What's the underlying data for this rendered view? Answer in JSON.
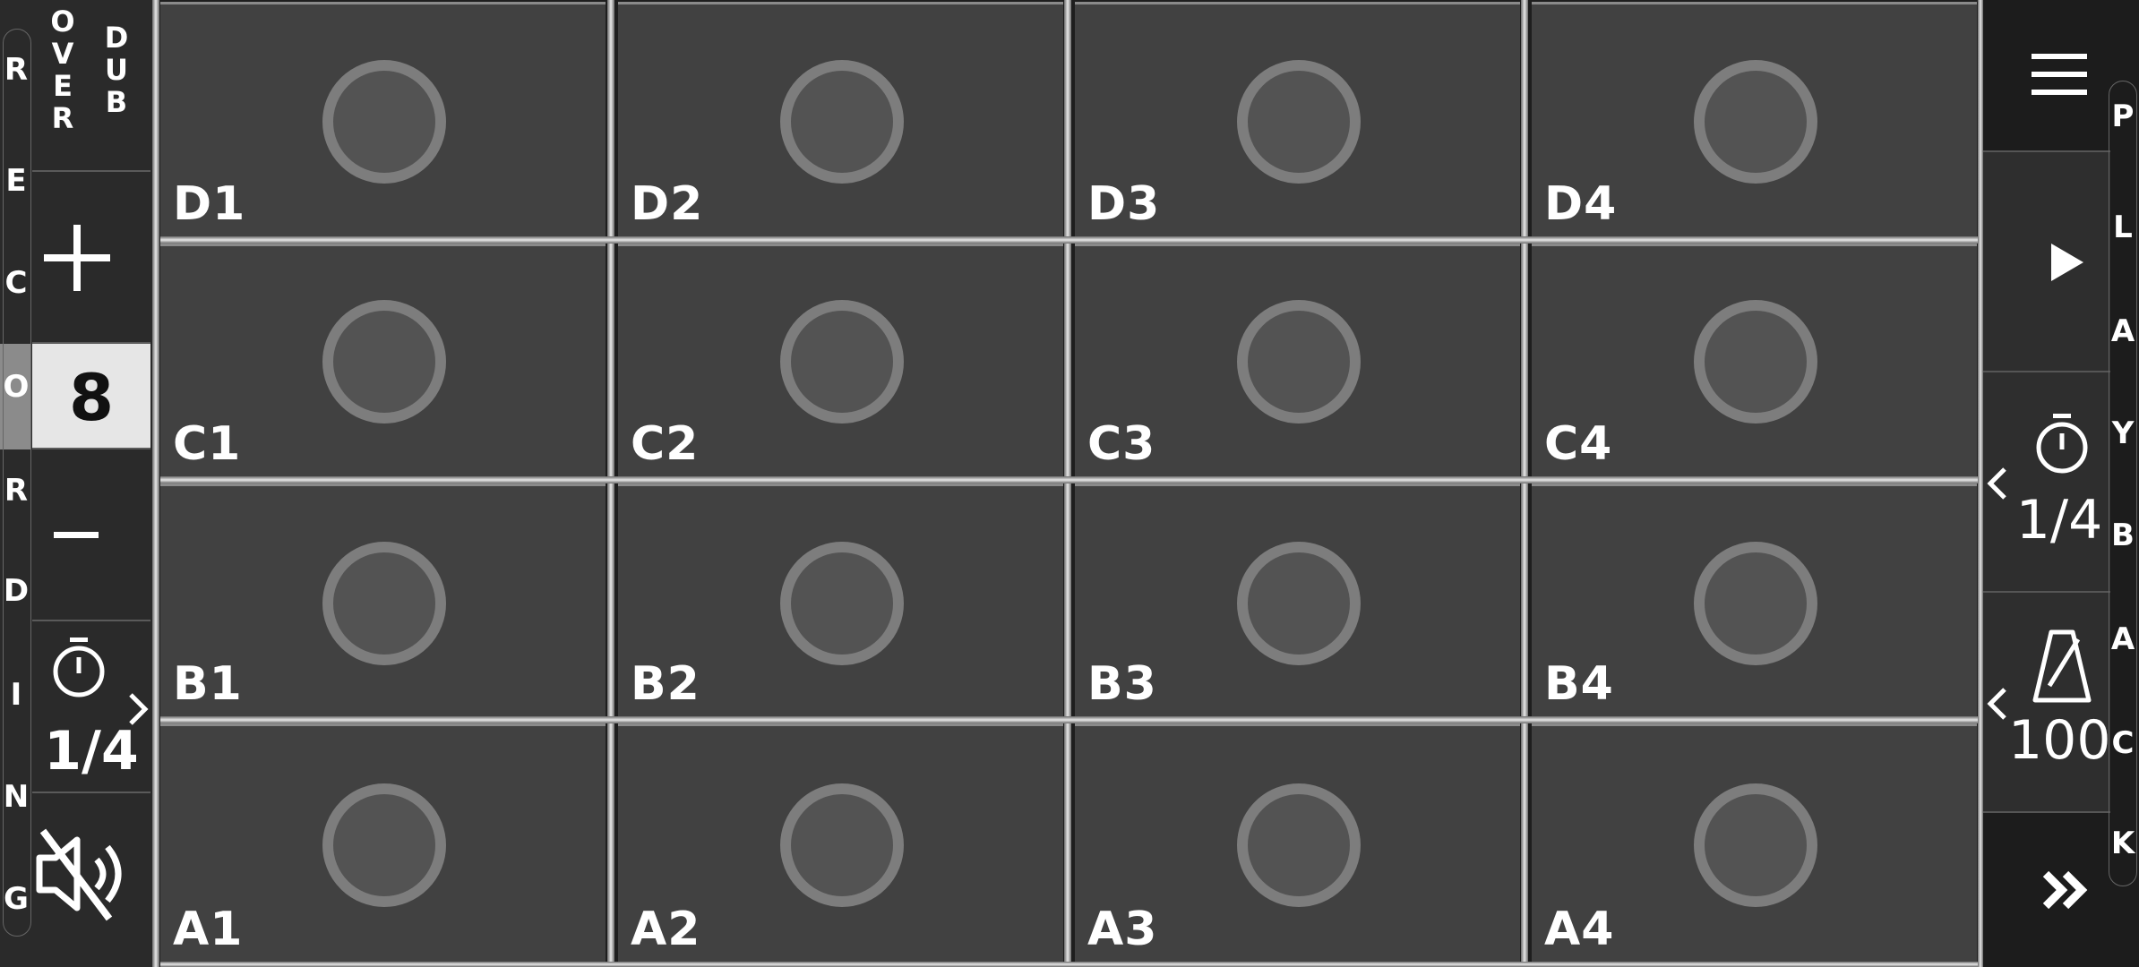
{
  "left_rail": {
    "record_letters": [
      "R",
      "E",
      "C",
      "O",
      "R",
      "D",
      "I",
      "N",
      "G"
    ],
    "overdub_left": "O\nV\nE\nR",
    "overdub_right": "D\nU\nB",
    "loop_count": "8",
    "quantize_value": "1/4"
  },
  "pads": [
    {
      "label": "D1"
    },
    {
      "label": "D2"
    },
    {
      "label": "D3"
    },
    {
      "label": "D4"
    },
    {
      "label": "C1"
    },
    {
      "label": "C2"
    },
    {
      "label": "C3"
    },
    {
      "label": "C4"
    },
    {
      "label": "B1"
    },
    {
      "label": "B2"
    },
    {
      "label": "B3"
    },
    {
      "label": "B4"
    },
    {
      "label": "A1"
    },
    {
      "label": "A2"
    },
    {
      "label": "A3"
    },
    {
      "label": "A4"
    }
  ],
  "right_rail": {
    "playback_letters": [
      "P",
      "L",
      "A",
      "Y",
      "B",
      "A",
      "C",
      "K"
    ],
    "beat_value": "1/4",
    "tempo_value": "100"
  },
  "icons": {
    "menu": "hamburger-icon",
    "play": "play-icon",
    "timer": "stopwatch-icon",
    "metronome": "metronome-icon",
    "fast_forward": "double-chevron-icon",
    "mute": "speaker-muted-icon"
  },
  "colors": {
    "pad": "#414141",
    "ring": "#7d7d7d",
    "count_bg": "#e6e6e6",
    "record_highlight": "#8b8b8b"
  }
}
